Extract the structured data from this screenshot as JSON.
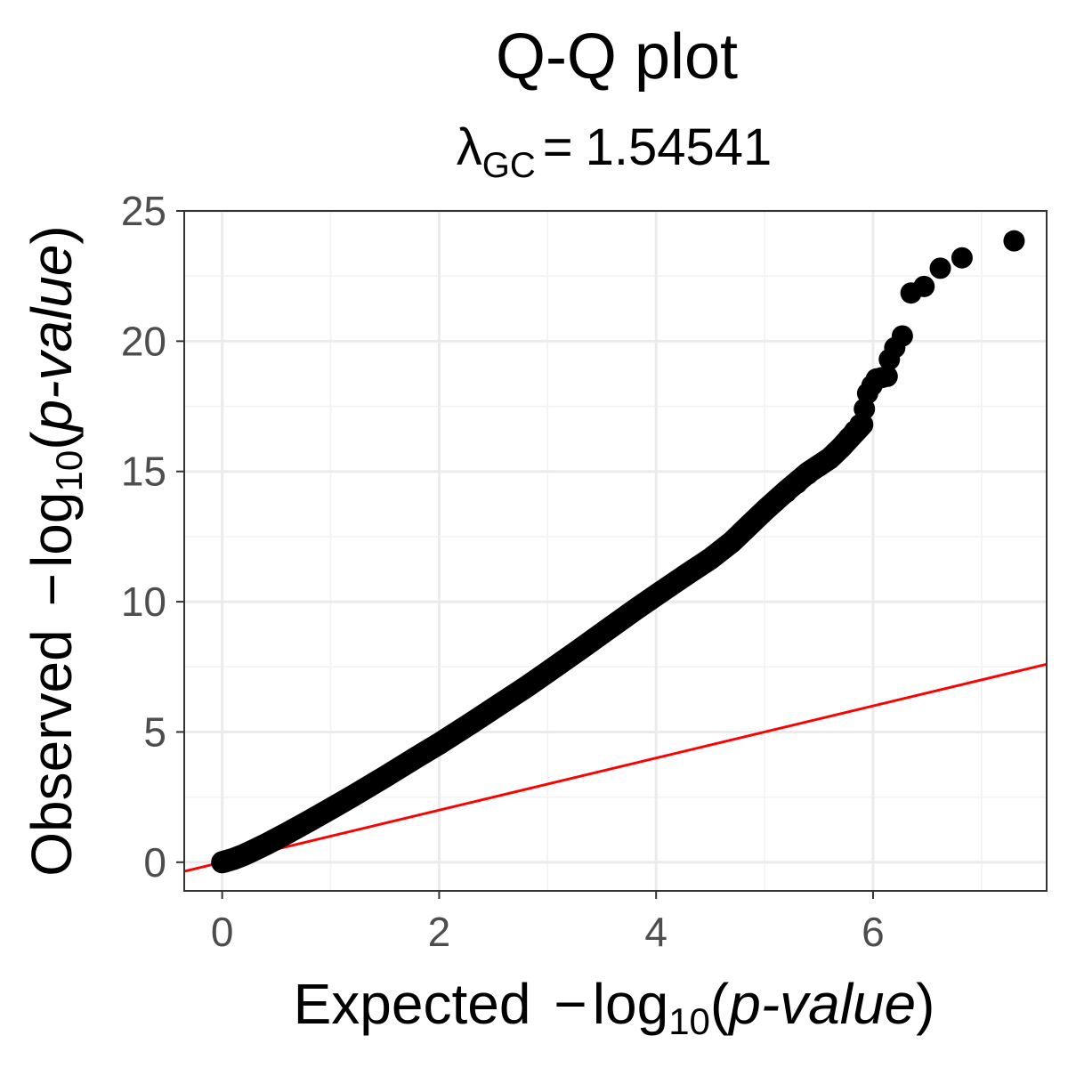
{
  "chart_data": {
    "type": "scatter",
    "title": "Q-Q plot",
    "subtitle": {
      "symbol": "λ",
      "subscript": "GC",
      "equals": "=",
      "value": "1.54541"
    },
    "xlabel": {
      "prefix": "Expected",
      "minus": "−",
      "log": "log",
      "base": "10",
      "open": "(",
      "var": "p-value",
      "close": ")"
    },
    "ylabel": {
      "prefix": "Observed",
      "minus": "−",
      "log": "log",
      "base": "10",
      "open": "(",
      "var": "p-value",
      "close": ")"
    },
    "xlim": [
      -0.35,
      7.6
    ],
    "ylim": [
      -1.1,
      25
    ],
    "x_ticks": [
      0,
      2,
      4,
      6
    ],
    "x_tick_labels": [
      "0",
      "2",
      "4",
      "6"
    ],
    "y_ticks": [
      0,
      5,
      10,
      15,
      20,
      25
    ],
    "y_tick_labels": [
      "0",
      "5",
      "10",
      "15",
      "20",
      "25"
    ],
    "grid": true,
    "point_color": "#000000",
    "reference_line": {
      "slope": 1,
      "intercept": 0,
      "color": "#ff0000"
    },
    "curve": [
      [
        0.0,
        0.0
      ],
      [
        0.1,
        0.12
      ],
      [
        0.2,
        0.28
      ],
      [
        0.3,
        0.48
      ],
      [
        0.4,
        0.68
      ],
      [
        0.5,
        0.9
      ],
      [
        0.6,
        1.12
      ],
      [
        0.8,
        1.58
      ],
      [
        1.0,
        2.05
      ],
      [
        1.2,
        2.53
      ],
      [
        1.5,
        3.28
      ],
      [
        1.8,
        4.05
      ],
      [
        2.0,
        4.55
      ],
      [
        2.3,
        5.35
      ],
      [
        2.5,
        5.9
      ],
      [
        2.8,
        6.72
      ],
      [
        3.0,
        7.3
      ],
      [
        3.3,
        8.18
      ],
      [
        3.5,
        8.78
      ],
      [
        3.8,
        9.67
      ],
      [
        4.0,
        10.25
      ],
      [
        4.3,
        11.1
      ],
      [
        4.5,
        11.65
      ],
      [
        4.7,
        12.3
      ],
      [
        4.8,
        12.7
      ],
      [
        4.9,
        13.1
      ],
      [
        5.0,
        13.5
      ],
      [
        5.2,
        14.25
      ],
      [
        5.4,
        14.95
      ],
      [
        5.6,
        15.5
      ],
      [
        5.7,
        15.9
      ],
      [
        5.8,
        16.35
      ],
      [
        5.9,
        16.8
      ]
    ],
    "points": [
      [
        5.0,
        13.5
      ],
      [
        5.1,
        13.85
      ],
      [
        5.2,
        14.2
      ],
      [
        5.3,
        14.55
      ],
      [
        5.4,
        14.9
      ],
      [
        5.5,
        15.2
      ],
      [
        5.58,
        15.45
      ],
      [
        5.65,
        15.7
      ],
      [
        5.72,
        16.0
      ],
      [
        5.78,
        16.3
      ],
      [
        5.83,
        16.55
      ],
      [
        5.88,
        16.8
      ],
      [
        5.92,
        17.4
      ],
      [
        5.95,
        18.0
      ],
      [
        5.99,
        18.3
      ],
      [
        6.03,
        18.55
      ],
      [
        6.08,
        18.6
      ],
      [
        6.13,
        18.65
      ],
      [
        6.15,
        19.3
      ],
      [
        6.2,
        19.75
      ],
      [
        6.27,
        20.2
      ],
      [
        6.35,
        21.85
      ],
      [
        6.47,
        22.1
      ],
      [
        6.62,
        22.8
      ],
      [
        6.82,
        23.2
      ],
      [
        7.3,
        23.85
      ]
    ]
  }
}
